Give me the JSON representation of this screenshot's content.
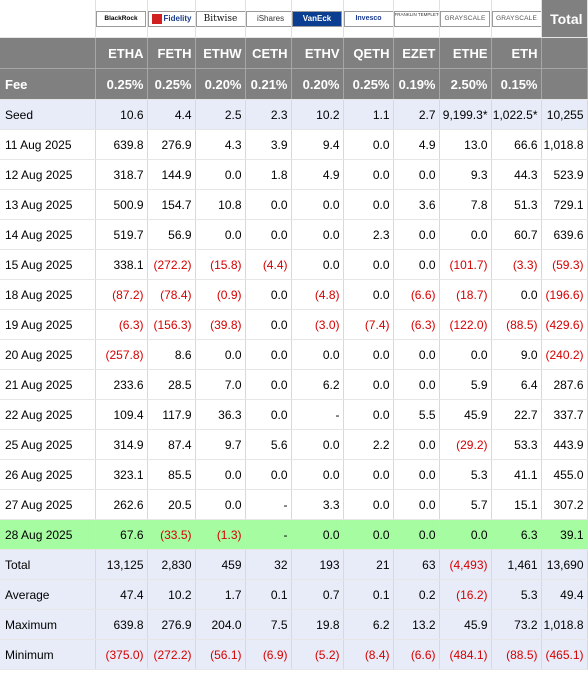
{
  "header": {
    "total_label": "Total",
    "funds": [
      {
        "logo": "blackrock-logo",
        "logo_text": "BlackRock",
        "ticker": "ETHA",
        "fee": "0.25%"
      },
      {
        "logo": "fidelity-logo",
        "logo_text": "Fidelity",
        "ticker": "FETH",
        "fee": "0.25%"
      },
      {
        "logo": "bitwise-logo",
        "logo_text": "Bitwise",
        "ticker": "ETHW",
        "fee": "0.20%"
      },
      {
        "logo": "ishares-logo",
        "logo_text": "iShares",
        "ticker": "CETH",
        "fee": "0.21%"
      },
      {
        "logo": "vaneck-logo",
        "logo_text": "VanEck",
        "ticker": "ETHV",
        "fee": "0.20%"
      },
      {
        "logo": "invesco-logo",
        "logo_text": "Invesco",
        "ticker": "QETH",
        "fee": "0.25%"
      },
      {
        "logo": "franklin-templeton-logo",
        "logo_text": "FRANKLIN TEMPLETON",
        "ticker": "EZET",
        "fee": "0.19%"
      },
      {
        "logo": "grayscale-logo",
        "logo_text": "GRAYSCALE",
        "ticker": "ETHE",
        "fee": "2.50%"
      },
      {
        "logo": "grayscale-logo",
        "logo_text": "GRAYSCALE",
        "ticker": "ETH",
        "fee": "0.15%"
      }
    ],
    "fee_label": "Fee"
  },
  "rows": [
    {
      "label": "Seed",
      "cells": [
        "10.6",
        "4.4",
        "2.5",
        "2.3",
        "10.2",
        "1.1",
        "2.7",
        "9,199.3*",
        "1,022.5*",
        "10,255"
      ],
      "style": "seed"
    },
    {
      "label": "11 Aug 2025",
      "cells": [
        "639.8",
        "276.9",
        "4.3",
        "3.9",
        "9.4",
        "0.0",
        "4.9",
        "13.0",
        "66.6",
        "1,018.8"
      ],
      "style": ""
    },
    {
      "label": "12 Aug 2025",
      "cells": [
        "318.7",
        "144.9",
        "0.0",
        "1.8",
        "4.9",
        "0.0",
        "0.0",
        "9.3",
        "44.3",
        "523.9"
      ],
      "style": ""
    },
    {
      "label": "13 Aug 2025",
      "cells": [
        "500.9",
        "154.7",
        "10.8",
        "0.0",
        "0.0",
        "0.0",
        "3.6",
        "7.8",
        "51.3",
        "729.1"
      ],
      "style": ""
    },
    {
      "label": "14 Aug 2025",
      "cells": [
        "519.7",
        "56.9",
        "0.0",
        "0.0",
        "0.0",
        "2.3",
        "0.0",
        "0.0",
        "60.7",
        "639.6"
      ],
      "style": ""
    },
    {
      "label": "15 Aug 2025",
      "cells": [
        "338.1",
        "(272.2)",
        "(15.8)",
        "(4.4)",
        "0.0",
        "0.0",
        "0.0",
        "(101.7)",
        "(3.3)",
        "(59.3)"
      ],
      "style": ""
    },
    {
      "label": "18 Aug 2025",
      "cells": [
        "(87.2)",
        "(78.4)",
        "(0.9)",
        "0.0",
        "(4.8)",
        "0.0",
        "(6.6)",
        "(18.7)",
        "0.0",
        "(196.6)"
      ],
      "style": ""
    },
    {
      "label": "19 Aug 2025",
      "cells": [
        "(6.3)",
        "(156.3)",
        "(39.8)",
        "0.0",
        "(3.0)",
        "(7.4)",
        "(6.3)",
        "(122.0)",
        "(88.5)",
        "(429.6)"
      ],
      "style": ""
    },
    {
      "label": "20 Aug 2025",
      "cells": [
        "(257.8)",
        "8.6",
        "0.0",
        "0.0",
        "0.0",
        "0.0",
        "0.0",
        "0.0",
        "9.0",
        "(240.2)"
      ],
      "style": ""
    },
    {
      "label": "21 Aug 2025",
      "cells": [
        "233.6",
        "28.5",
        "7.0",
        "0.0",
        "6.2",
        "0.0",
        "0.0",
        "5.9",
        "6.4",
        "287.6"
      ],
      "style": ""
    },
    {
      "label": "22 Aug 2025",
      "cells": [
        "109.4",
        "117.9",
        "36.3",
        "0.0",
        "-",
        "0.0",
        "5.5",
        "45.9",
        "22.7",
        "337.7"
      ],
      "style": ""
    },
    {
      "label": "25 Aug 2025",
      "cells": [
        "314.9",
        "87.4",
        "9.7",
        "5.6",
        "0.0",
        "2.2",
        "0.0",
        "(29.2)",
        "53.3",
        "443.9"
      ],
      "style": ""
    },
    {
      "label": "26 Aug 2025",
      "cells": [
        "323.1",
        "85.5",
        "0.0",
        "0.0",
        "0.0",
        "0.0",
        "0.0",
        "5.3",
        "41.1",
        "455.0"
      ],
      "style": ""
    },
    {
      "label": "27 Aug 2025",
      "cells": [
        "262.6",
        "20.5",
        "0.0",
        "-",
        "3.3",
        "0.0",
        "0.0",
        "5.7",
        "15.1",
        "307.2"
      ],
      "style": ""
    },
    {
      "label": "28 Aug 2025",
      "cells": [
        "67.6",
        "(33.5)",
        "(1.3)",
        "-",
        "0.0",
        "0.0",
        "0.0",
        "0.0",
        "6.3",
        "39.1"
      ],
      "style": "hl"
    },
    {
      "label": "Total",
      "cells": [
        "13,125",
        "2,830",
        "459",
        "32",
        "193",
        "21",
        "63",
        "(4,493)",
        "1,461",
        "13,690"
      ],
      "style": "stat"
    },
    {
      "label": "Average",
      "cells": [
        "47.4",
        "10.2",
        "1.7",
        "0.1",
        "0.7",
        "0.1",
        "0.2",
        "(16.2)",
        "5.3",
        "49.4"
      ],
      "style": "stat"
    },
    {
      "label": "Maximum",
      "cells": [
        "639.8",
        "276.9",
        "204.0",
        "7.5",
        "19.8",
        "6.2",
        "13.2",
        "45.9",
        "73.2",
        "1,018.8"
      ],
      "style": "stat"
    },
    {
      "label": "Minimum",
      "cells": [
        "(375.0)",
        "(272.2)",
        "(56.1)",
        "(6.9)",
        "(5.2)",
        "(8.4)",
        "(6.6)",
        "(484.1)",
        "(88.5)",
        "(465.1)"
      ],
      "style": "stat"
    }
  ],
  "colors": {
    "header_bg": "#808080",
    "negative": "#d40000",
    "highlight": "#a6fca0",
    "stat_bg": "#e8ecf8"
  }
}
